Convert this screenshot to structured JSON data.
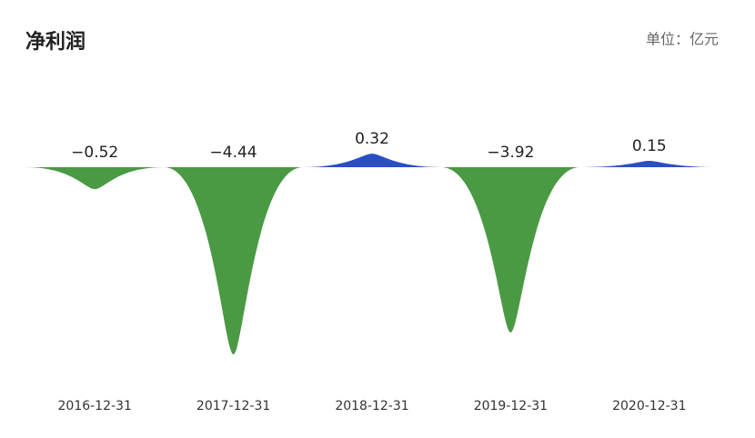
{
  "chart_data": {
    "type": "spike",
    "title": "净利润",
    "unit_label": "单位：亿元",
    "categories": [
      "2016-12-31",
      "2017-12-31",
      "2018-12-31",
      "2019-12-31",
      "2020-12-31"
    ],
    "values": [
      -0.52,
      -4.44,
      0.32,
      -3.92,
      0.15
    ],
    "value_labels": [
      "−0.52",
      "−4.44",
      "0.32",
      "−3.92",
      "0.15"
    ],
    "colors": {
      "positive": "#2a4fc4",
      "negative": "#4a9a44"
    }
  }
}
